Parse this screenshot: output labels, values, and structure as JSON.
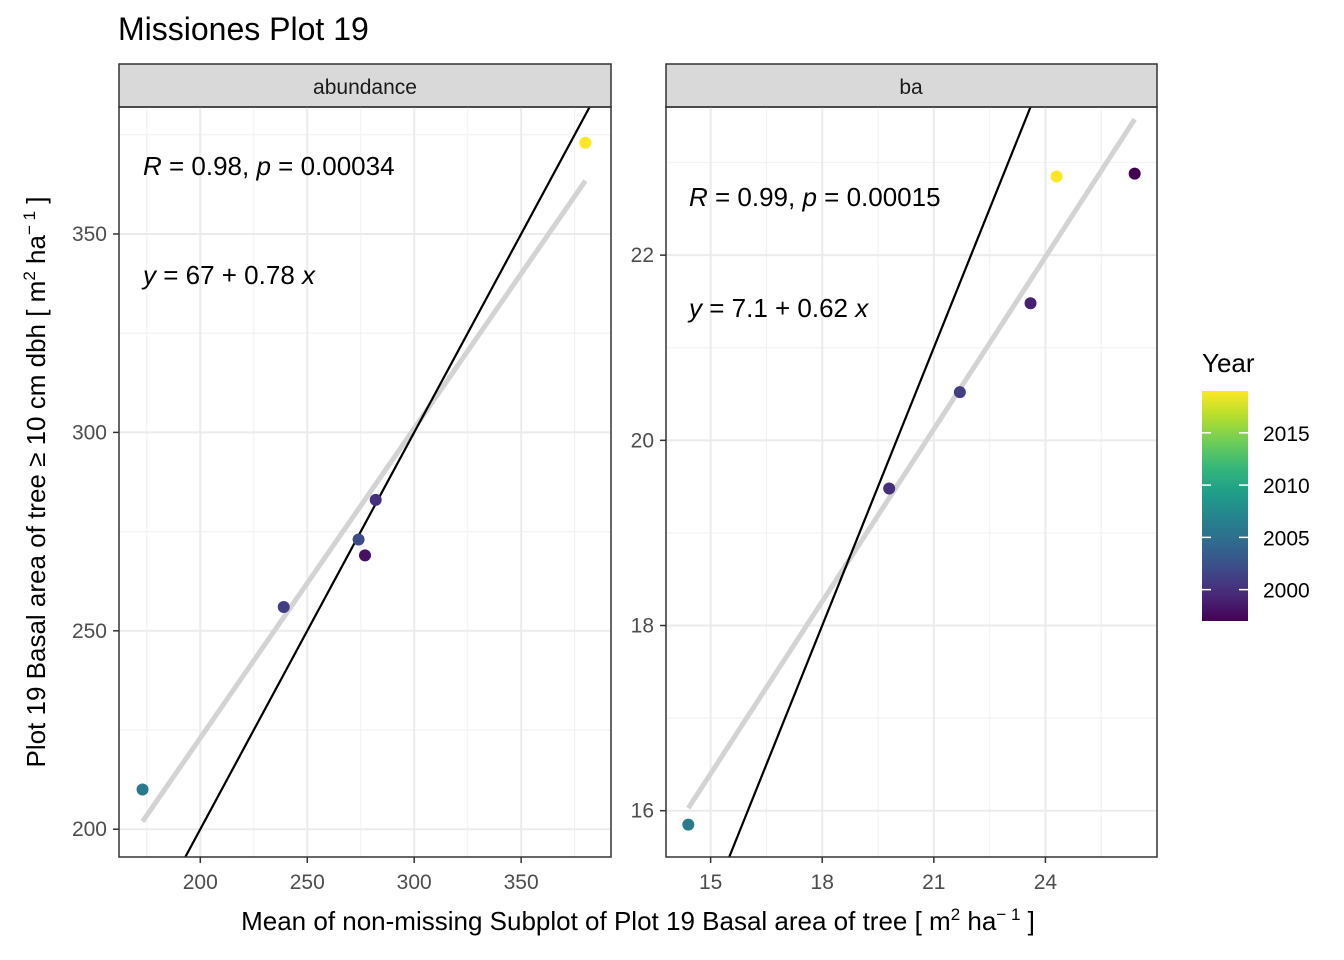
{
  "chart_data": {
    "type": "scatter",
    "title": "Missiones Plot 19",
    "xlabel": {
      "pre": "Mean of non-missing Subplot of Plot 19 Basal area of tree [ m",
      "sup1": "2",
      "mid": " ha",
      "sup2": "− 1",
      "post": " ]"
    },
    "ylabel": {
      "pre": "Plot 19 Basal area of tree  ≥ 10 cm dbh [ m",
      "sup1": "2",
      "mid": " ha",
      "sup2": "− 1",
      "post": " ]"
    },
    "legend": {
      "title": "Year",
      "position": "right",
      "ticks": [
        2000,
        2005,
        2010,
        2015
      ],
      "range": [
        1997,
        2019
      ],
      "colors": [
        "#440154",
        "#482878",
        "#3E4A89",
        "#31688E",
        "#26828E",
        "#1F9E89",
        "#35B779",
        "#6DCD59",
        "#B4DE2C",
        "#FDE725"
      ]
    },
    "reference_line": "y = x",
    "panels": [
      {
        "strip": "abundance",
        "xlim": [
          162,
          392
        ],
        "ylim": [
          193,
          382
        ],
        "xticks": [
          200,
          250,
          300,
          350
        ],
        "yticks": [
          200,
          250,
          300,
          350
        ],
        "annotation": {
          "r_label": "R",
          "r_value": " = 0.98, ",
          "p_label": "p",
          "p_value": " = 0.00034"
        },
        "equation": {
          "y": "y",
          "rhs": " = 67 + 0.78 ",
          "x": "x"
        },
        "fit": {
          "intercept": 67,
          "slope": 0.78,
          "x_range": [
            173,
            380
          ]
        },
        "points": [
          {
            "x": 173,
            "y": 210,
            "year": 2006
          },
          {
            "x": 239,
            "y": 256,
            "year": 2001
          },
          {
            "x": 274,
            "y": 273,
            "year": 2002
          },
          {
            "x": 277,
            "y": 269,
            "year": 1998
          },
          {
            "x": 282,
            "y": 283,
            "year": 2000
          },
          {
            "x": 380,
            "y": 373,
            "year": 2019
          }
        ]
      },
      {
        "strip": "ba",
        "xlim": [
          13.8,
          27.0
        ],
        "ylim": [
          15.5,
          23.6
        ],
        "xticks": [
          15,
          18,
          21,
          24
        ],
        "yticks": [
          16,
          18,
          20,
          22
        ],
        "annotation": {
          "r_label": "R",
          "r_value": " = 0.99, ",
          "p_label": "p",
          "p_value": " = 0.00015"
        },
        "equation": {
          "y": "y",
          "rhs": " = 7.1 + 0.62 ",
          "x": "x"
        },
        "fit": {
          "intercept": 7.1,
          "slope": 0.62,
          "x_range": [
            14.4,
            26.4
          ]
        },
        "points": [
          {
            "x": 14.4,
            "y": 15.85,
            "year": 2006
          },
          {
            "x": 19.8,
            "y": 19.48,
            "year": 2000
          },
          {
            "x": 21.7,
            "y": 20.52,
            "year": 2001
          },
          {
            "x": 23.6,
            "y": 21.48,
            "year": 1999
          },
          {
            "x": 24.3,
            "y": 22.85,
            "year": 2019
          },
          {
            "x": 26.4,
            "y": 22.88,
            "year": 1997
          }
        ]
      }
    ]
  }
}
